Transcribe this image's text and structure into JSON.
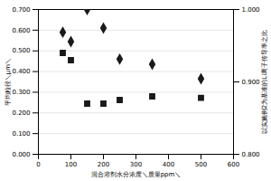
{
  "chart_data": {
    "type": "scatter",
    "xlabel": "混合溶剂水分浓度＼质量ppm＼",
    "ylabel": "平均粒径＼μm＼",
    "y2label": "以实施例2为基准的Li离子传导率之比",
    "x": [
      75,
      100,
      150,
      200,
      250,
      350,
      500
    ],
    "series": [
      {
        "color": "#1a1a1a",
        "marker": "diamond",
        "values": [
          0.59,
          0.545,
          0.7,
          0.61,
          0.46,
          0.435,
          0.365
        ]
      },
      {
        "color": "#1a1a1a",
        "marker": "square",
        "axis": "y2",
        "values": [
          0.94,
          0.93,
          0.87,
          0.87,
          0.875,
          0.88,
          0.878
        ]
      }
    ],
    "xlim": [
      0,
      600
    ],
    "xticks": [
      0,
      100,
      200,
      300,
      400,
      500,
      600
    ],
    "ylim": [
      0,
      0.7
    ],
    "yticks": [
      {
        "value": 0,
        "label": "0.000"
      },
      {
        "value": 0.1,
        "label": "0.100"
      },
      {
        "value": 0.2,
        "label": "0.200"
      },
      {
        "value": 0.3,
        "label": "0.300"
      },
      {
        "value": 0.4,
        "label": "0.400"
      },
      {
        "value": 0.5,
        "label": "0.500"
      },
      {
        "value": 0.6,
        "label": "0.600"
      },
      {
        "value": 0.7,
        "label": "0.700"
      }
    ],
    "y2lim": [
      0.8,
      1.0
    ],
    "y2ticks": [
      {
        "value": 0.8,
        "label": "0.800"
      },
      {
        "value": 0.9,
        "label": "0.900"
      },
      {
        "value": 1.0,
        "label": "1.000"
      }
    ],
    "grid": true
  }
}
